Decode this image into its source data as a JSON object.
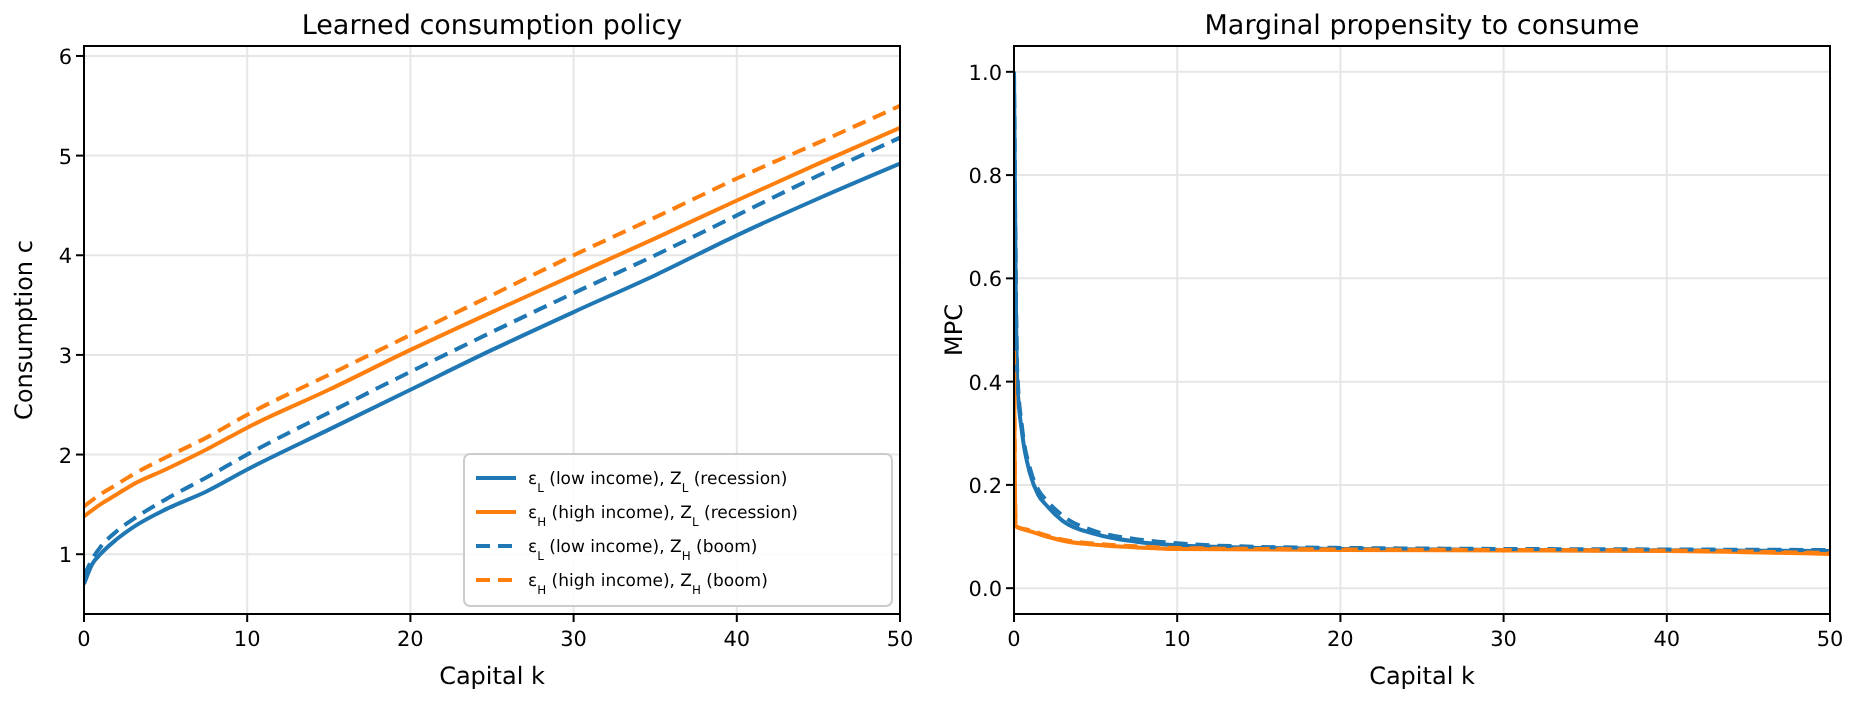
{
  "chart_data": [
    {
      "type": "line",
      "title": "Learned consumption policy",
      "xlabel": "Capital k",
      "ylabel": "Consumption c",
      "xlim": [
        0,
        50
      ],
      "ylim": [
        0.4,
        6.1
      ],
      "xticks": [
        0,
        10,
        20,
        30,
        40,
        50
      ],
      "yticks": [
        1,
        2,
        3,
        4,
        5,
        6
      ],
      "grid": true,
      "legend": "bottom right",
      "series": [
        {
          "name": "ε$_{L}$ (low income), Z$_{L}$ (recession)",
          "color": "#1f77b4",
          "line_style": "solid",
          "x": [
            0,
            0.5,
            1,
            2,
            3,
            5,
            7.5,
            10,
            15,
            20,
            25,
            30,
            35,
            40,
            45,
            50
          ],
          "values": [
            0.7,
            0.9,
            1.0,
            1.15,
            1.27,
            1.45,
            1.63,
            1.85,
            2.25,
            2.65,
            3.05,
            3.43,
            3.8,
            4.2,
            4.57,
            4.92
          ]
        },
        {
          "name": "ε$_{H}$ (high income), Z$_{L}$ (recession)",
          "color": "#ff7f0e",
          "line_style": "solid",
          "x": [
            0,
            1,
            2,
            3,
            5,
            7.5,
            10,
            15,
            20,
            25,
            30,
            35,
            40,
            45,
            50
          ],
          "values": [
            1.38,
            1.5,
            1.6,
            1.7,
            1.85,
            2.05,
            2.27,
            2.65,
            3.05,
            3.43,
            3.8,
            4.17,
            4.55,
            4.92,
            5.28
          ]
        },
        {
          "name": "ε$_{L}$ (low income), Z$_{H}$ (boom)",
          "color": "#1f77b4",
          "line_style": "dashed",
          "x": [
            0,
            0.5,
            1,
            2,
            3,
            5,
            7.5,
            10,
            15,
            20,
            25,
            30,
            35,
            40,
            45,
            50
          ],
          "values": [
            0.78,
            0.95,
            1.07,
            1.23,
            1.35,
            1.55,
            1.77,
            2.0,
            2.42,
            2.83,
            3.23,
            3.62,
            4.0,
            4.4,
            4.8,
            5.18
          ]
        },
        {
          "name": "ε$_{H}$ (high income), Z$_{H}$ (boom)",
          "color": "#ff7f0e",
          "line_style": "dashed",
          "x": [
            0,
            1,
            2,
            3,
            5,
            7.5,
            10,
            15,
            20,
            25,
            30,
            35,
            40,
            45,
            50
          ],
          "values": [
            1.48,
            1.6,
            1.7,
            1.8,
            1.97,
            2.17,
            2.4,
            2.8,
            3.2,
            3.6,
            4.0,
            4.38,
            4.77,
            5.13,
            5.5
          ]
        }
      ]
    },
    {
      "type": "line",
      "title": "Marginal propensity to consume",
      "xlabel": "Capital k",
      "ylabel": "MPC",
      "xlim": [
        0,
        50
      ],
      "ylim": [
        -0.05,
        1.05
      ],
      "xticks": [
        0,
        10,
        20,
        30,
        40,
        50
      ],
      "yticks": [
        {
          "value": 0,
          "label": "0.0"
        },
        0.2,
        0.4,
        0.6,
        0.8,
        {
          "value": 1,
          "label": "1.0"
        }
      ],
      "grid": true,
      "legend": false,
      "series": [
        {
          "color": "#1f77b4",
          "line_style": "solid",
          "x": [
            0,
            0.1,
            0.2,
            0.5,
            1,
            1.5,
            2,
            3,
            5,
            7.5,
            10,
            15,
            20,
            30,
            40,
            50
          ],
          "values": [
            1.0,
            0.6,
            0.4,
            0.3,
            0.22,
            0.18,
            0.16,
            0.13,
            0.105,
            0.09,
            0.083,
            0.078,
            0.076,
            0.074,
            0.073,
            0.072
          ]
        },
        {
          "color": "#ff7f0e",
          "line_style": "solid",
          "x": [
            0,
            0.1,
            1,
            2,
            3,
            5,
            7.5,
            10,
            20,
            30,
            40,
            50
          ],
          "values": [
            0.45,
            0.12,
            0.11,
            0.1,
            0.092,
            0.084,
            0.079,
            0.076,
            0.074,
            0.073,
            0.072,
            0.066
          ]
        },
        {
          "color": "#1f77b4",
          "line_style": "dashed",
          "x": [
            0,
            0.1,
            0.2,
            0.5,
            1,
            1.5,
            2,
            3,
            5,
            7.5,
            10,
            15,
            20,
            30,
            40,
            50
          ],
          "values": [
            1.0,
            0.62,
            0.42,
            0.31,
            0.23,
            0.19,
            0.17,
            0.14,
            0.11,
            0.095,
            0.087,
            0.08,
            0.078,
            0.076,
            0.075,
            0.074
          ]
        },
        {
          "color": "#ff7f0e",
          "line_style": "dashed",
          "x": [
            0,
            0.1,
            1,
            2,
            3,
            5,
            7.5,
            10,
            20,
            30,
            40,
            50
          ],
          "values": [
            0.46,
            0.12,
            0.112,
            0.102,
            0.094,
            0.086,
            0.081,
            0.078,
            0.075,
            0.074,
            0.073,
            0.068
          ]
        }
      ]
    }
  ]
}
